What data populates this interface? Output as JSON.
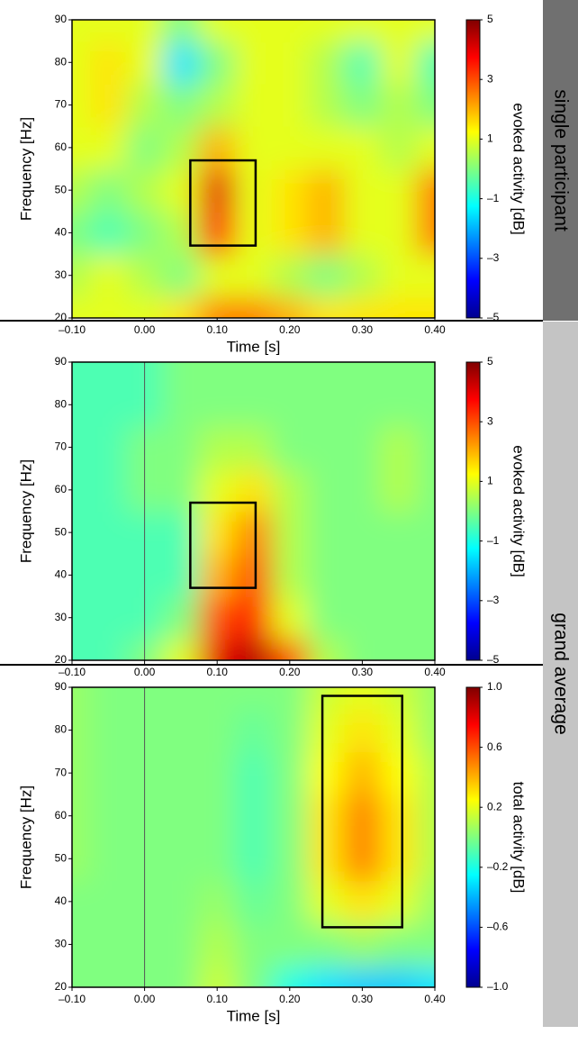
{
  "side_labels": [
    "single participant",
    "grand average"
  ],
  "chart_data": [
    {
      "type": "heatmap",
      "xlabel": "Time [s]",
      "ylabel": "Frequency [Hz]",
      "colorbar_label": "evoked activity [dB]",
      "colormap": "jet",
      "xlim": [
        -0.1,
        0.4
      ],
      "ylim": [
        20,
        90
      ],
      "clim": [
        -5,
        5
      ],
      "xticks": [
        {
          "value": -0.1,
          "label": "–0.10"
        },
        {
          "value": 0,
          "label": "0.00"
        },
        {
          "value": 0.1,
          "label": "0.10"
        },
        {
          "value": 0.2,
          "label": "0.20"
        },
        {
          "value": 0.3,
          "label": "0.30"
        },
        {
          "value": 0.4,
          "label": "0.40"
        }
      ],
      "yticks": [
        20,
        30,
        40,
        50,
        60,
        70,
        80,
        90
      ],
      "cticks": [
        5,
        3,
        1,
        {
          "value": -1,
          "label": "–1"
        },
        {
          "value": -3,
          "label": "–3"
        },
        {
          "value": -5,
          "label": "–5"
        }
      ],
      "box": {
        "x": [
          0.063,
          0.153
        ],
        "y": [
          37,
          57
        ]
      },
      "x": [
        -0.1,
        -0.05,
        0,
        0.05,
        0.1,
        0.15,
        0.2,
        0.25,
        0.3,
        0.35,
        0.4
      ],
      "y": [
        20,
        30,
        40,
        50,
        60,
        70,
        80,
        90
      ],
      "z": [
        [
          1,
          1,
          1,
          1.5,
          2.5,
          2.5,
          2,
          1.5,
          1.5,
          1.5,
          1.5
        ],
        [
          0.5,
          1,
          0.5,
          0,
          1,
          1,
          0.5,
          0,
          0.5,
          1,
          1
        ],
        [
          0,
          -0.5,
          0,
          0.5,
          3.5,
          1,
          1.5,
          2,
          1,
          1,
          2.5
        ],
        [
          0.5,
          0,
          0.5,
          1,
          4,
          1,
          1.5,
          2,
          1,
          1,
          2.5
        ],
        [
          1,
          1,
          0,
          0.5,
          2,
          1,
          1,
          1,
          1,
          0.5,
          1
        ],
        [
          1,
          1.5,
          0.5,
          0,
          0.5,
          1,
          1,
          0.5,
          0,
          0.5,
          0
        ],
        [
          1,
          1.5,
          1,
          -1.5,
          0,
          1,
          1,
          0.5,
          -0.5,
          1,
          -0.5
        ],
        [
          1,
          1,
          1,
          0,
          1,
          1,
          1,
          1,
          1,
          1,
          1
        ]
      ]
    },
    {
      "type": "heatmap",
      "ylabel": "Frequency [Hz]",
      "colorbar_label": "evoked activity [dB]",
      "colormap": "jet",
      "xlim": [
        -0.1,
        0.4
      ],
      "ylim": [
        20,
        90
      ],
      "clim": [
        -5,
        5
      ],
      "vline": 0,
      "xticks": [
        {
          "value": -0.1,
          "label": "–0.10"
        },
        {
          "value": 0,
          "label": "0.00"
        },
        {
          "value": 0.1,
          "label": "0.10"
        },
        {
          "value": 0.2,
          "label": "0.20"
        },
        {
          "value": 0.3,
          "label": "0.30"
        },
        {
          "value": 0.4,
          "label": "0.40"
        }
      ],
      "yticks": [
        20,
        30,
        40,
        50,
        60,
        70,
        80,
        90
      ],
      "cticks": [
        5,
        3,
        1,
        {
          "value": -1,
          "label": "–1"
        },
        {
          "value": -3,
          "label": "–3"
        },
        {
          "value": -5,
          "label": "–5"
        }
      ],
      "box": {
        "x": [
          0.063,
          0.153
        ],
        "y": [
          37,
          57
        ]
      },
      "x": [
        -0.1,
        -0.05,
        0,
        0.05,
        0.1,
        0.15,
        0.2,
        0.25,
        0.3,
        0.35,
        0.4
      ],
      "y": [
        20,
        30,
        40,
        50,
        60,
        70,
        80,
        90
      ],
      "z": [
        [
          -0.5,
          -0.5,
          0,
          1,
          4,
          4.5,
          3,
          0.5,
          0,
          0,
          0
        ],
        [
          -0.5,
          -0.5,
          -0.5,
          0,
          3,
          3.5,
          1,
          0,
          0,
          0,
          0
        ],
        [
          -0.5,
          -0.5,
          -0.5,
          -0.5,
          2,
          3,
          0.5,
          0,
          0,
          0,
          0
        ],
        [
          -0.5,
          -0.5,
          -0.5,
          -0.5,
          1.5,
          2.5,
          0.5,
          0,
          0,
          0,
          0
        ],
        [
          -0.5,
          -0.5,
          0,
          0,
          1,
          1.5,
          0.5,
          0,
          0,
          0.5,
          0
        ],
        [
          -0.5,
          -0.5,
          0,
          0,
          0.5,
          0.5,
          0,
          0,
          0,
          0.5,
          0
        ],
        [
          -0.5,
          -0.5,
          -0.5,
          0,
          0,
          0,
          0,
          0,
          0,
          0,
          0
        ],
        [
          -0.5,
          -0.5,
          -0.5,
          0,
          0,
          0,
          0,
          0,
          0,
          0,
          0
        ]
      ]
    },
    {
      "type": "heatmap",
      "xlabel": "Time [s]",
      "ylabel": "Frequency [Hz]",
      "colorbar_label": "total activity [dB]",
      "colormap": "jet",
      "xlim": [
        -0.1,
        0.4
      ],
      "ylim": [
        20,
        90
      ],
      "clim": [
        -1,
        1
      ],
      "vline": 0,
      "xticks": [
        {
          "value": -0.1,
          "label": "–0.10"
        },
        {
          "value": 0,
          "label": "0.00"
        },
        {
          "value": 0.1,
          "label": "0.10"
        },
        {
          "value": 0.2,
          "label": "0.20"
        },
        {
          "value": 0.3,
          "label": "0.30"
        },
        {
          "value": 0.4,
          "label": "0.40"
        }
      ],
      "yticks": [
        20,
        30,
        40,
        50,
        60,
        70,
        80,
        90
      ],
      "cticks": [
        {
          "value": 1,
          "label": "1.0"
        },
        0.6,
        0.2,
        {
          "value": -0.2,
          "label": "–0.2"
        },
        {
          "value": -0.6,
          "label": "–0.6"
        },
        {
          "value": -1,
          "label": "–1.0"
        }
      ],
      "box": {
        "x": [
          0.245,
          0.355
        ],
        "y": [
          34,
          88
        ]
      },
      "x": [
        -0.1,
        -0.05,
        0,
        0.05,
        0.1,
        0.15,
        0.2,
        0.25,
        0.3,
        0.35,
        0.4
      ],
      "y": [
        20,
        30,
        40,
        50,
        60,
        70,
        80,
        90
      ],
      "z": [
        [
          0,
          0,
          0,
          0,
          0.15,
          0,
          -0.2,
          -0.3,
          -0.35,
          -0.35,
          -0.3
        ],
        [
          0,
          0,
          0,
          0,
          0.1,
          0,
          0,
          0,
          0.05,
          0,
          0
        ],
        [
          0,
          0,
          0,
          0,
          0.05,
          -0.05,
          0,
          0.2,
          0.3,
          0.2,
          0.05
        ],
        [
          0.05,
          0,
          0,
          0,
          0,
          -0.1,
          0,
          0.3,
          0.5,
          0.3,
          0.1
        ],
        [
          0.05,
          0,
          0,
          0,
          0,
          -0.1,
          0,
          0.3,
          0.5,
          0.3,
          0.1
        ],
        [
          0.05,
          0,
          0,
          0,
          0,
          -0.1,
          0,
          0.25,
          0.4,
          0.25,
          0.1
        ],
        [
          0.05,
          0,
          0,
          0,
          0,
          -0.05,
          0,
          0.2,
          0.3,
          0.2,
          0.05
        ],
        [
          0.05,
          0,
          0,
          0,
          0,
          0,
          0,
          0.15,
          0.2,
          0.15,
          0.05
        ]
      ]
    }
  ]
}
